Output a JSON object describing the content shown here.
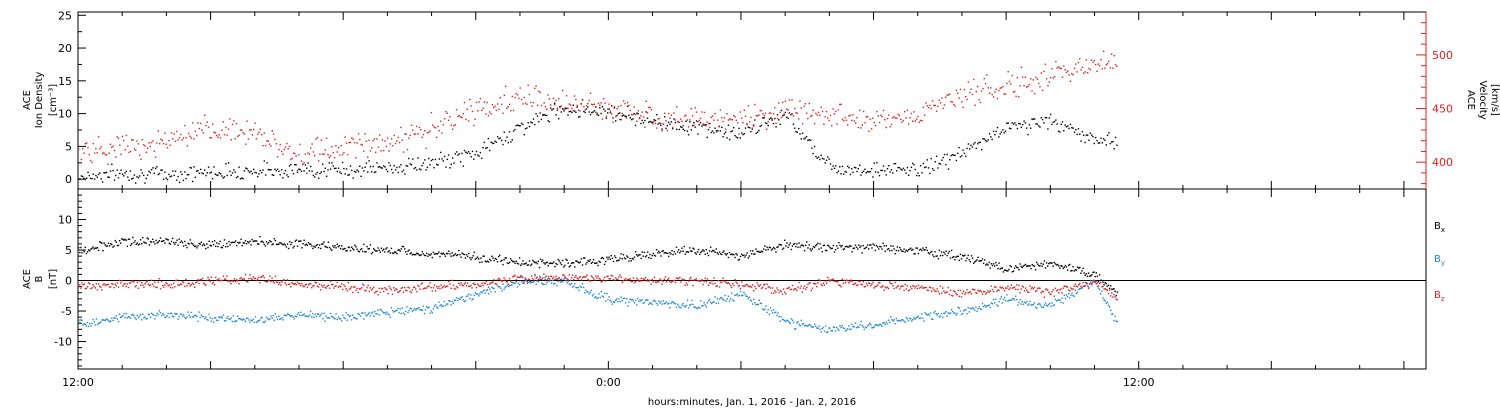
{
  "chart_data": [
    {
      "type": "scatter",
      "panel": "top",
      "ylabel_left": [
        "ACE",
        "Ion Density",
        "[cm⁻³]"
      ],
      "ylabel_right": [
        "ACE",
        "Velocity",
        "[km/s]"
      ],
      "ylim_left": [
        -1.5,
        25.5
      ],
      "ylim_right": [
        375,
        540
      ],
      "yticks_left": [
        0,
        5,
        10,
        15,
        20,
        25
      ],
      "yticks_right": [
        400,
        450,
        500
      ],
      "grid": false,
      "colors": {
        "density": "#000000",
        "velocity": "#e0201e"
      },
      "series": [
        {
          "axis": "left",
          "x": [
            0,
            1,
            2,
            3,
            4,
            5,
            6,
            7,
            8,
            9,
            10,
            11,
            12,
            13,
            14,
            15,
            16,
            17,
            18,
            19,
            20,
            21,
            22,
            23,
            23.5
          ],
          "values": [
            0.5,
            1.0,
            0.8,
            1.2,
            1.4,
            1.6,
            1.5,
            1.8,
            2.5,
            4.0,
            8.0,
            11.0,
            10.5,
            9.0,
            8.0,
            7.0,
            10.0,
            2.0,
            1.5,
            1.5,
            4.0,
            8.0,
            9.0,
            6.0,
            6.0
          ]
        },
        {
          "axis": "right",
          "x": [
            0,
            1,
            2,
            3,
            4,
            5,
            6,
            7,
            8,
            9,
            10,
            11,
            12,
            13,
            14,
            15,
            16,
            17,
            18,
            19,
            20,
            21,
            22,
            23,
            23.5
          ],
          "values": [
            410,
            415,
            420,
            430,
            430,
            405,
            415,
            420,
            430,
            450,
            460,
            455,
            450,
            445,
            440,
            440,
            450,
            445,
            440,
            445,
            465,
            470,
            480,
            495,
            490
          ]
        }
      ]
    },
    {
      "type": "scatter",
      "panel": "bottom",
      "ylabel": [
        "ACE",
        "B",
        "[nT]"
      ],
      "ylim": [
        -14.5,
        15
      ],
      "yticks": [
        -10,
        -5,
        0,
        5,
        10
      ],
      "zero_line": true,
      "series": [
        {
          "name": "Bx",
          "color": "#000000",
          "x": [
            0,
            1,
            2,
            3,
            4,
            5,
            6,
            7,
            8,
            9,
            10,
            11,
            12,
            13,
            14,
            15,
            16,
            17,
            18,
            19,
            20,
            21,
            22,
            23,
            23.5
          ],
          "values": [
            5,
            6.5,
            6.5,
            6,
            6.5,
            6.0,
            5.5,
            5,
            4.5,
            4,
            3,
            3,
            3.5,
            4.5,
            5,
            4,
            6,
            5.5,
            5.5,
            5,
            4,
            2,
            3,
            1,
            -2
          ]
        },
        {
          "name": "By",
          "color": "#1e88d8",
          "x": [
            0,
            1,
            2,
            3,
            4,
            5,
            6,
            7,
            8,
            9,
            10,
            11,
            12,
            13,
            14,
            15,
            16,
            17,
            18,
            19,
            20,
            21,
            22,
            23,
            23.5
          ],
          "values": [
            -7,
            -6,
            -5.5,
            -6,
            -6.5,
            -5.5,
            -6,
            -5,
            -4.5,
            -2,
            0,
            0,
            -3,
            -3.5,
            -4,
            -2,
            -6.5,
            -8,
            -7,
            -6,
            -5,
            -3,
            -4,
            0,
            -7
          ]
        },
        {
          "name": "Bz",
          "color": "#e0201e",
          "x": [
            0,
            1,
            2,
            3,
            4,
            5,
            6,
            7,
            8,
            9,
            10,
            11,
            12,
            13,
            14,
            15,
            16,
            17,
            18,
            19,
            20,
            21,
            22,
            23,
            23.5
          ],
          "values": [
            -1,
            -0.5,
            -0.5,
            0,
            0.5,
            -0.5,
            -1,
            -1.5,
            -1,
            -0.5,
            0.5,
            0.5,
            0.5,
            0,
            0,
            -0.5,
            -1.5,
            0,
            -0.5,
            -1,
            -2,
            -1,
            -2,
            0,
            -3
          ]
        }
      ],
      "legend": {
        "placement": "right",
        "items": [
          "Bx",
          "By",
          "Bz"
        ]
      }
    }
  ],
  "x_axis": {
    "range": [
      0,
      30.5
    ],
    "tick_labels": [
      "12:00",
      "0:00",
      "12:00"
    ],
    "tick_hours": [
      0,
      12,
      24
    ],
    "label": "hours:minutes, Jan.  1, 2016 - Jan.  2, 2016"
  }
}
